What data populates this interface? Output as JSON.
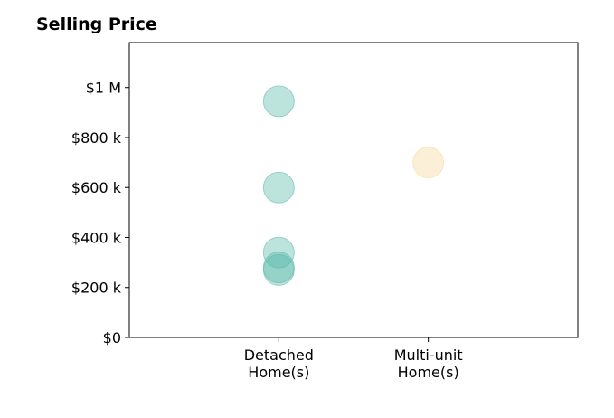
{
  "chart_data": {
    "type": "scatter",
    "title": "Selling Price",
    "xlabel": "",
    "ylabel": "",
    "categories": [
      [
        "Detached",
        "Home(s)"
      ],
      [
        "Multi-unit",
        "Home(s)"
      ]
    ],
    "yticks": [
      {
        "value": 0,
        "label": "$0"
      },
      {
        "value": 200000,
        "label": "$200 k"
      },
      {
        "value": 400000,
        "label": "$400 k"
      },
      {
        "value": 600000,
        "label": "$600 k"
      },
      {
        "value": 800000,
        "label": "$800 k"
      },
      {
        "value": 1000000,
        "label": "$1 M"
      }
    ],
    "ylim": [
      0,
      1180000
    ],
    "xlim": [
      -1,
      2
    ],
    "grid": false,
    "points": [
      {
        "category": 0,
        "y": 945000
      },
      {
        "category": 0,
        "y": 600000
      },
      {
        "category": 0,
        "y": 340000
      },
      {
        "category": 0,
        "y": 280000
      },
      {
        "category": 0,
        "y": 270000
      },
      {
        "category": 1,
        "y": 700000
      }
    ],
    "colors": [
      "#5bb8aa",
      "#f4d99c"
    ]
  }
}
